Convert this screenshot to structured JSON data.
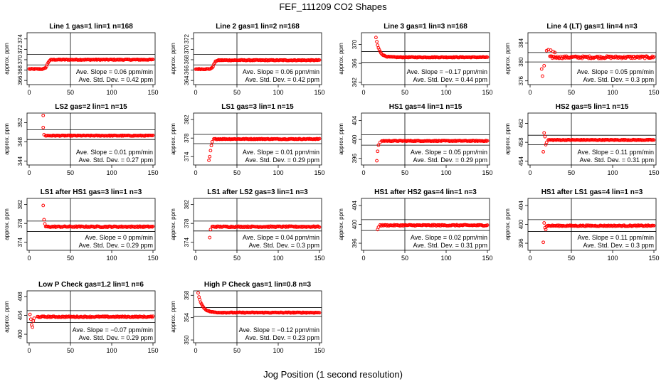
{
  "page": {
    "title": "FEF_111209  CO2 Shapes",
    "xlabel": "Jog Position (1 second resolution)"
  },
  "colors": {
    "points": "#ff0000",
    "axes": "#000000"
  },
  "chart_data": [
    {
      "type": "scatter",
      "title": "Line 1 gas=1 lin=1 n=168",
      "ylabel": "approx. ppm",
      "xlim": [
        0,
        150
      ],
      "xticks": [
        0,
        50,
        100,
        150
      ],
      "yticks": [
        366,
        368,
        370,
        372,
        374
      ],
      "ylim": [
        365.2,
        375.2
      ],
      "hlines": [
        369.0,
        371.0
      ],
      "vline": 50,
      "profile": {
        "type": "step",
        "start": 368.2,
        "end": 370.0,
        "knee": 22,
        "x0": 0,
        "noise": 0.08
      },
      "outliers": [],
      "slope": "Ave. Slope = 0.06 ppm/min",
      "stddev": "Ave. Std. Dev. = 0.42 ppm"
    },
    {
      "type": "scatter",
      "title": "Line 2 gas=1 lin=2 n=168",
      "ylabel": "approx. ppm",
      "xlim": [
        0,
        150
      ],
      "xticks": [
        0,
        50,
        100,
        150
      ],
      "yticks": [
        364,
        366,
        368,
        370,
        372
      ],
      "ylim": [
        363.2,
        373.2
      ],
      "hlines": [
        367.0,
        369.0
      ],
      "vline": 50,
      "profile": {
        "type": "step",
        "start": 366.2,
        "end": 367.9,
        "knee": 22,
        "x0": 0,
        "noise": 0.08
      },
      "outliers": [],
      "slope": "Ave. Slope = 0.06 ppm/min",
      "stddev": "Ave. Std. Dev. = 0.42 ppm"
    },
    {
      "type": "scatter",
      "title": "Line 3 gas=1 lin=3 n=168",
      "ylabel": "approx. ppm",
      "xlim": [
        0,
        150
      ],
      "xticks": [
        0,
        50,
        100,
        150
      ],
      "yticks": [
        362,
        366,
        370
      ],
      "ylim": [
        361.5,
        372.5
      ],
      "hlines": [
        366.2,
        368.5
      ],
      "vline": 50,
      "profile": {
        "type": "decay",
        "start": 371.5,
        "end": 367.3,
        "tau": 4,
        "x0": 15,
        "noise": 0.08
      },
      "outliers": [],
      "slope": "Ave. Slope = −0.17 ppm/min",
      "stddev": "Ave. Std. Dev. = 0.44 ppm"
    },
    {
      "type": "scatter",
      "title": "Line 4 (LT) gas=1 lin=4 n=3",
      "ylabel": "approx. ppm",
      "xlim": [
        0,
        150
      ],
      "xticks": [
        0,
        50,
        100,
        150
      ],
      "yticks": [
        376,
        380,
        384
      ],
      "ylim": [
        375.2,
        386.2
      ],
      "hlines": [
        380.0,
        382.0
      ],
      "vline": 50,
      "profile": {
        "type": "flat",
        "level": 381.0,
        "x0": 24,
        "noise": 0.25
      },
      "outliers": [
        [
          14,
          378.5
        ],
        [
          15,
          377.0
        ],
        [
          17,
          379.2
        ],
        [
          20,
          382.4
        ],
        [
          22,
          382.6
        ],
        [
          25,
          382.5
        ],
        [
          28,
          382.2
        ],
        [
          30,
          382.0
        ]
      ],
      "slope": "Ave. Slope = 0.05 ppm/min",
      "stddev": "Ave. Std. Dev. = 0.3 ppm"
    },
    {
      "type": "scatter",
      "title": "LS2 gas=2 lin=1 n=15",
      "ylabel": "approx. ppm",
      "xlim": [
        0,
        150
      ],
      "xticks": [
        0,
        50,
        100,
        150
      ],
      "yticks": [
        344,
        348,
        352
      ],
      "ylim": [
        343.2,
        354.0
      ],
      "hlines": [
        348.5,
        350.5
      ],
      "vline": 50,
      "profile": {
        "type": "flat",
        "level": 349.3,
        "x0": 20,
        "noise": 0.08
      },
      "outliers": [
        [
          17,
          353.5
        ],
        [
          17,
          351.0
        ],
        [
          18,
          349.5
        ]
      ],
      "slope": "Ave. Slope = 0.01 ppm/min",
      "stddev": "Ave. Std. Dev. = 0.27 ppm"
    },
    {
      "type": "scatter",
      "title": "LS1 gas=3 lin=1 n=15",
      "ylabel": "approx. ppm",
      "xlim": [
        0,
        150
      ],
      "xticks": [
        0,
        50,
        100,
        150
      ],
      "yticks": [
        374,
        378,
        382
      ],
      "ylim": [
        372.2,
        383.4
      ],
      "hlines": [
        376.8,
        378.8
      ],
      "vline": 50,
      "profile": {
        "type": "flat",
        "level": 377.8,
        "x0": 22,
        "noise": 0.08
      },
      "outliers": [
        [
          16,
          373.2
        ],
        [
          17,
          374.0
        ],
        [
          18,
          375.3
        ],
        [
          19,
          376.4
        ],
        [
          20,
          377.2
        ]
      ],
      "slope": "Ave. Slope = 0.01 ppm/min",
      "stddev": "Ave. Std. Dev. = 0.29 ppm"
    },
    {
      "type": "scatter",
      "title": "HS1 gas=4 lin=1 n=15",
      "ylabel": "approx. ppm",
      "xlim": [
        0,
        150
      ],
      "xticks": [
        0,
        50,
        100,
        150
      ],
      "yticks": [
        396,
        400,
        404
      ],
      "ylim": [
        394.6,
        405.6
      ],
      "hlines": [
        398.8,
        401.0
      ],
      "vline": 50,
      "profile": {
        "type": "flat",
        "level": 399.7,
        "x0": 22,
        "noise": 0.08
      },
      "outliers": [
        [
          16,
          395.5
        ],
        [
          17,
          397.5
        ],
        [
          18,
          398.8
        ],
        [
          20,
          399.4
        ]
      ],
      "slope": "Ave. Slope = 0.05 ppm/min",
      "stddev": "Ave. Std. Dev. = 0.29 ppm"
    },
    {
      "type": "scatter",
      "title": "HS2 gas=5 lin=1 n=15",
      "ylabel": "approx. ppm",
      "xlim": [
        0,
        150
      ],
      "xticks": [
        0,
        50,
        100,
        150
      ],
      "yticks": [
        454,
        458,
        462
      ],
      "ylim": [
        453.2,
        464.2
      ],
      "hlines": [
        457.5,
        459.5
      ],
      "vline": 50,
      "profile": {
        "type": "flat",
        "level": 458.5,
        "x0": 22,
        "noise": 0.08
      },
      "outliers": [
        [
          16,
          456.0
        ],
        [
          17,
          460.0
        ],
        [
          18,
          459.2
        ],
        [
          19,
          457.5
        ],
        [
          20,
          458.0
        ]
      ],
      "slope": "Ave. Slope = 0.11 ppm/min",
      "stddev": "Ave. Std. Dev. = 0.31 ppm"
    },
    {
      "type": "scatter",
      "title": "LS1 after HS1 gas=3 lin=1 n=3",
      "ylabel": "approx. ppm",
      "xlim": [
        0,
        150
      ],
      "xticks": [
        0,
        50,
        100,
        150
      ],
      "yticks": [
        374,
        378,
        382
      ],
      "ylim": [
        372.3,
        383.3
      ],
      "hlines": [
        376.3,
        378.5
      ],
      "vline": 50,
      "profile": {
        "type": "flat",
        "level": 377.3,
        "x0": 20,
        "noise": 0.12
      },
      "outliers": [
        [
          17,
          381.8
        ],
        [
          18,
          378.8
        ],
        [
          19,
          377.9
        ]
      ],
      "slope": "Ave. Slope = 0 ppm/min",
      "stddev": "Ave. Std. Dev. = 0.29 ppm"
    },
    {
      "type": "scatter",
      "title": "LS1 after LS2 gas=3 lin=1 n=3",
      "ylabel": "approx. ppm",
      "xlim": [
        0,
        150
      ],
      "xticks": [
        0,
        50,
        100,
        150
      ],
      "yticks": [
        374,
        378,
        382
      ],
      "ylim": [
        372.3,
        383.3
      ],
      "hlines": [
        376.4,
        378.5
      ],
      "vline": 50,
      "profile": {
        "type": "flat",
        "level": 377.3,
        "x0": 20,
        "noise": 0.12
      },
      "outliers": [
        [
          17,
          375.0
        ],
        [
          18,
          376.7
        ]
      ],
      "slope": "Ave. Slope = 0.04 ppm/min",
      "stddev": "Ave. Std. Dev. = 0.3 ppm"
    },
    {
      "type": "scatter",
      "title": "HS1 after HS2 gas=4 lin=1 n=3",
      "ylabel": "approx. ppm",
      "xlim": [
        0,
        150
      ],
      "xticks": [
        0,
        50,
        100,
        150
      ],
      "yticks": [
        396,
        400,
        404
      ],
      "ylim": [
        394.5,
        405.5
      ],
      "hlines": [
        398.7,
        401.0
      ],
      "vline": 50,
      "profile": {
        "type": "flat",
        "level": 399.8,
        "x0": 20,
        "noise": 0.12
      },
      "outliers": [
        [
          17,
          398.9
        ],
        [
          18,
          399.4
        ]
      ],
      "slope": "Ave. Slope = 0.02 ppm/min",
      "stddev": "Ave. Std. Dev. = 0.31 ppm"
    },
    {
      "type": "scatter",
      "title": "HS1 after LS1 gas=4 lin=1 n=3",
      "ylabel": "approx. ppm",
      "xlim": [
        0,
        150
      ],
      "xticks": [
        0,
        50,
        100,
        150
      ],
      "yticks": [
        396,
        400,
        404
      ],
      "ylim": [
        394.5,
        405.5
      ],
      "hlines": [
        398.5,
        401.0
      ],
      "vline": 50,
      "profile": {
        "type": "flat",
        "level": 399.7,
        "x0": 20,
        "noise": 0.12
      },
      "outliers": [
        [
          16,
          396.2
        ],
        [
          17,
          400.3
        ],
        [
          18,
          399.3
        ],
        [
          19,
          398.9
        ]
      ],
      "slope": "Ave. Slope = 0.11 ppm/min",
      "stddev": "Ave. Std. Dev. = 0.3 ppm"
    },
    {
      "type": "scatter",
      "title": "Low P Check gas=1.2 lin=1 n=6",
      "ylabel": "approx. ppm",
      "xlim": [
        0,
        150
      ],
      "xticks": [
        0,
        50,
        100,
        150
      ],
      "yticks": [
        400,
        404,
        408
      ],
      "ylim": [
        398.2,
        409.2
      ],
      "hlines": [
        402.5,
        405.0
      ],
      "vline": 50,
      "profile": {
        "type": "flat",
        "level": 403.7,
        "x0": 10,
        "noise": 0.12
      },
      "outliers": [
        [
          1,
          404.2
        ],
        [
          2,
          403.2
        ],
        [
          3,
          402.0
        ],
        [
          4,
          401.5
        ],
        [
          5,
          402.8
        ],
        [
          6,
          403.4
        ]
      ],
      "slope": "Ave. Slope = −0.07 ppm/min",
      "stddev": "Ave. Std. Dev. = 0.29 ppm"
    },
    {
      "type": "scatter",
      "title": "High P Check gas=1 lin=0.8 n=3",
      "ylabel": "approx. ppm",
      "xlim": [
        0,
        150
      ],
      "xticks": [
        0,
        50,
        100,
        150
      ],
      "yticks": [
        350,
        354,
        358
      ],
      "ylim": [
        349.5,
        358.8
      ],
      "hlines": [
        354.2,
        355.8
      ],
      "vline": 50,
      "profile": {
        "type": "decay",
        "start": 358.4,
        "end": 354.9,
        "tau": 5,
        "x0": 3,
        "noise": 0.07
      },
      "outliers": [],
      "slope": "Ave. Slope = −0.12 ppm/min",
      "stddev": "Ave. Std. Dev. = 0.23 ppm"
    }
  ]
}
